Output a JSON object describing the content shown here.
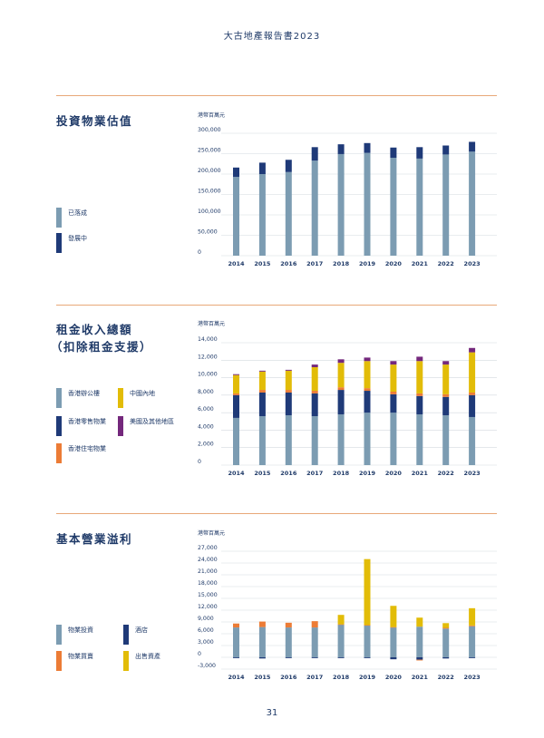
{
  "header": {
    "title": "大古地產報告書2023"
  },
  "page_number": "31",
  "colors": {
    "grey_blue": "#7c9cb2",
    "navy": "#1f3a78",
    "orange": "#ec7c36",
    "yellow": "#e2bc08",
    "purple": "#74287c",
    "rule": "#e8a878",
    "grid": "#d3d9df"
  },
  "sections": [
    {
      "title_lines": [
        "投資物業估值"
      ],
      "legend": [
        {
          "label": "已落成",
          "color": "#7c9cb2"
        },
        {
          "label": "發展中",
          "color": "#1f3a78"
        }
      ]
    },
    {
      "title_lines": [
        "租金收入總額",
        "（扣除租金支援）"
      ],
      "legend": [
        {
          "label": "香港辦公樓",
          "color": "#7c9cb2"
        },
        {
          "label": "中國內地",
          "color": "#e2bc08"
        },
        {
          "label": "香港零售物業",
          "color": "#1f3a78"
        },
        {
          "label": "美國及其他地區",
          "color": "#74287c"
        },
        {
          "label": "香港住宅物業",
          "color": "#ec7c36"
        }
      ]
    },
    {
      "title_lines": [
        "基本營業溢利"
      ],
      "legend": [
        {
          "label": "物業投資",
          "color": "#7c9cb2"
        },
        {
          "label": "酒店",
          "color": "#1f3a78"
        },
        {
          "label": "物業買賣",
          "color": "#ec7c36"
        },
        {
          "label": "出售資產",
          "color": "#e2bc08"
        }
      ]
    }
  ],
  "chart_data": [
    {
      "type": "bar",
      "stacked": true,
      "unit_label": "港幣百萬元",
      "categories": [
        "2014",
        "2015",
        "2016",
        "2017",
        "2018",
        "2019",
        "2020",
        "2021",
        "2022",
        "2023"
      ],
      "ylim": [
        0,
        300000
      ],
      "yticks": [
        0,
        50000,
        100000,
        150000,
        200000,
        250000,
        300000
      ],
      "ytick_labels": [
        "0",
        "50,000",
        "100,000",
        "150,000",
        "200,000",
        "250,000",
        "300,000"
      ],
      "grid": true,
      "series": [
        {
          "name": "已落成",
          "color": "#7c9cb2",
          "values": [
            193000,
            200000,
            205000,
            233000,
            249000,
            252000,
            240000,
            238000,
            248000,
            255000
          ]
        },
        {
          "name": "發展中",
          "color": "#1f3a78",
          "values": [
            23000,
            28000,
            30000,
            33000,
            24000,
            24000,
            25000,
            28000,
            22000,
            24000
          ]
        }
      ]
    },
    {
      "type": "bar",
      "stacked": true,
      "unit_label": "港幣百萬元",
      "categories": [
        "2014",
        "2015",
        "2016",
        "2017",
        "2018",
        "2019",
        "2020",
        "2021",
        "2022",
        "2023"
      ],
      "ylim": [
        0,
        14000
      ],
      "yticks": [
        0,
        2000,
        4000,
        6000,
        8000,
        10000,
        12000,
        14000
      ],
      "ytick_labels": [
        "0",
        "2,000",
        "4,000",
        "6,000",
        "8,000",
        "10,000",
        "12,000",
        "14,000"
      ],
      "grid": true,
      "series": [
        {
          "name": "香港辦公樓",
          "color": "#7c9cb2",
          "values": [
            5400,
            5600,
            5700,
            5600,
            5800,
            6000,
            6000,
            5800,
            5700,
            5500
          ]
        },
        {
          "name": "香港零售物業",
          "color": "#1f3a78",
          "values": [
            2600,
            2700,
            2600,
            2600,
            2800,
            2500,
            2100,
            2100,
            2100,
            2500
          ]
        },
        {
          "name": "香港住宅物業",
          "color": "#ec7c36",
          "values": [
            200,
            300,
            300,
            300,
            300,
            300,
            300,
            300,
            300,
            300
          ]
        },
        {
          "name": "中國內地",
          "color": "#e2bc08",
          "values": [
            2100,
            2100,
            2200,
            2700,
            2800,
            3100,
            3100,
            3700,
            3400,
            4600
          ]
        },
        {
          "name": "美國及其他地區",
          "color": "#74287c",
          "values": [
            100,
            100,
            100,
            300,
            400,
            400,
            400,
            500,
            400,
            500
          ]
        }
      ]
    },
    {
      "type": "bar",
      "stacked": true,
      "unit_label": "港幣百萬元",
      "categories": [
        "2014",
        "2015",
        "2016",
        "2017",
        "2018",
        "2019",
        "2020",
        "2021",
        "2022",
        "2023"
      ],
      "ylim": [
        -3000,
        27000
      ],
      "yticks": [
        -3000,
        0,
        3000,
        6000,
        9000,
        12000,
        15000,
        18000,
        21000,
        24000,
        27000
      ],
      "ytick_labels": [
        "-3,000",
        "0",
        "3,000",
        "6,000",
        "9,000",
        "12,000",
        "15,000",
        "18,000",
        "21,000",
        "24,000",
        "27,000"
      ],
      "grid": true,
      "series": [
        {
          "name": "物業投資",
          "color": "#7c9cb2",
          "values": [
            7600,
            7700,
            7600,
            7600,
            8300,
            8100,
            7600,
            7800,
            7300,
            7900
          ]
        },
        {
          "name": "酒店",
          "color": "#1f3a78",
          "values": [
            -200,
            -300,
            -200,
            -200,
            -200,
            -200,
            -500,
            -600,
            -300,
            -200
          ]
        },
        {
          "name": "物業買賣",
          "color": "#ec7c36",
          "values": [
            1000,
            1400,
            1200,
            1600,
            100,
            100,
            100,
            -200,
            200,
            200
          ]
        },
        {
          "name": "出售資產",
          "color": "#e2bc08",
          "values": [
            0,
            0,
            0,
            0,
            2400,
            16800,
            5400,
            2300,
            1200,
            4400
          ]
        }
      ]
    }
  ]
}
